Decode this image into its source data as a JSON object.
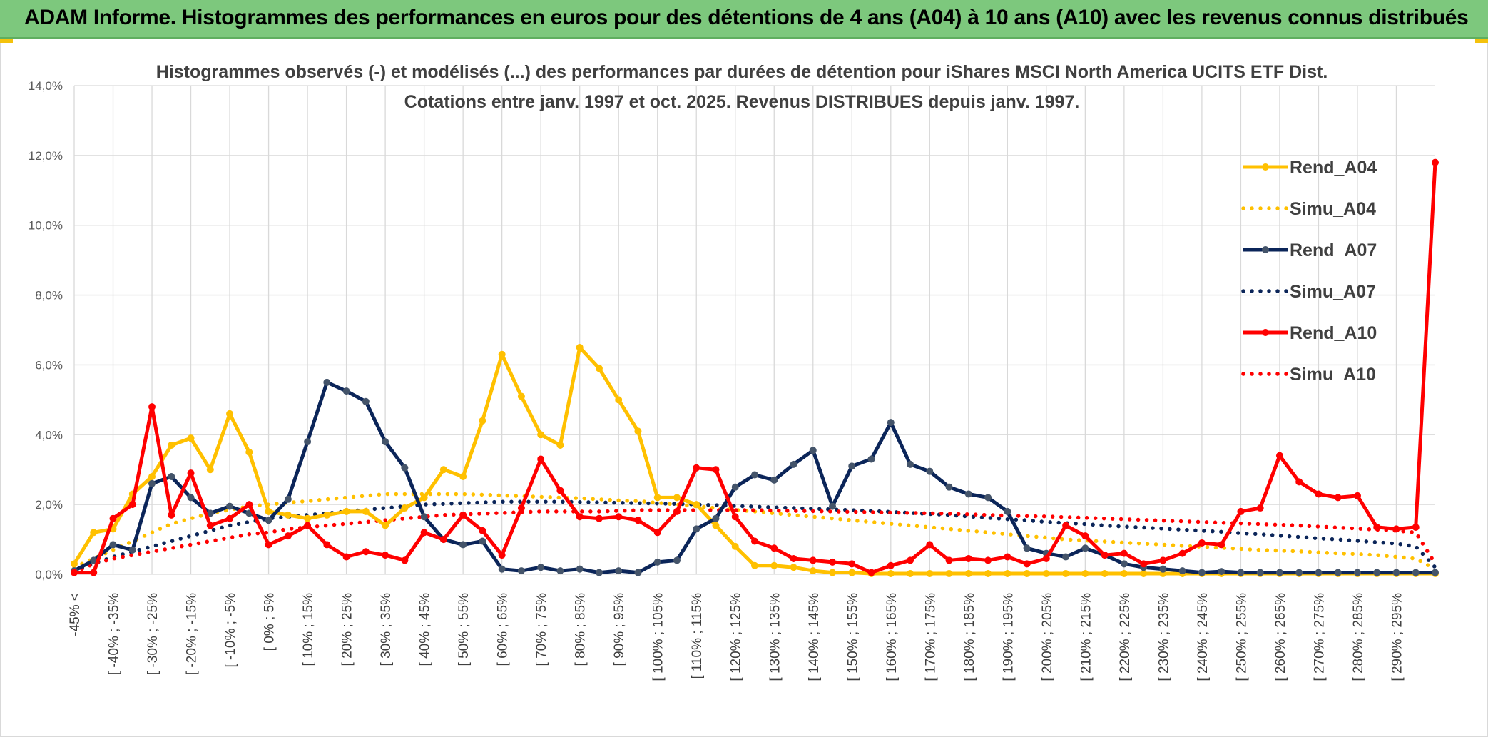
{
  "banner": {
    "title": "ADAM Informe. Histogrammes des performances en euros pour des détentions de 4 ans (A04) à 10 ans (A10) avec les revenus connus distribués"
  },
  "colors": {
    "banner_bg": "#7dc87d",
    "A04": "#ffc000",
    "A07": "#0b2559",
    "A10": "#ff0000",
    "marker_A07": "#44546a",
    "grid": "#d9d9d9"
  },
  "chart_data": {
    "type": "line",
    "title_lines": [
      "Histogrammes observés (-) et modélisés (...) des performances par durées de détention pour iShares MSCI North America UCITS ETF Dist.",
      "Cotations entre janv. 1997 et oct. 2025. Revenus DISTRIBUES depuis janv. 1997."
    ],
    "ylim": [
      0,
      14
    ],
    "yticks": [
      0,
      2,
      4,
      6,
      8,
      10,
      12,
      14
    ],
    "ytick_labels": [
      "0,0%",
      "2,0%",
      "4,0%",
      "6,0%",
      "8,0%",
      "10,0%",
      "12,0%",
      "14,0%"
    ],
    "x_tick_labels": [
      "-45% <",
      "[ -40% ; -35%",
      "[ -30% ; -25%",
      "[ -20% ; -15%",
      "[ -10% ; -5%",
      "[ 0% ; 5%",
      "[ 10% ; 15%",
      "[ 20% ; 25%",
      "[ 30% ; 35%",
      "[ 40% ; 45%",
      "[ 50% ; 55%",
      "[ 60% ; 65%",
      "[ 70% ; 75%",
      "[ 80% ; 85%",
      "[ 90% ; 95%",
      "[ 100% ; 105%",
      "[ 110% ; 115%",
      "[ 120% ; 125%",
      "[ 130% ; 135%",
      "[ 140% ; 145%",
      "[ 150% ; 155%",
      "[ 160% ; 165%",
      "[ 170% ; 175%",
      "[ 180% ; 185%",
      "[ 190% ; 195%",
      "[ 200% ; 205%",
      "[ 210% ; 215%",
      "[ 220% ; 225%",
      "[ 230% ; 235%",
      "[ 240% ; 245%",
      "[ 250% ; 255%",
      "[ 260% ; 265%",
      "[ 270% ; 275%",
      "[ 280% ; 285%",
      "[ 290% ; 295%"
    ],
    "series": [
      {
        "name": "Rend_A04",
        "style": "solid",
        "color_key": "A04",
        "values": [
          0.3,
          1.2,
          1.3,
          2.3,
          2.8,
          3.7,
          3.9,
          3.0,
          4.6,
          3.5,
          1.8,
          1.7,
          1.6,
          1.7,
          1.8,
          1.8,
          1.4,
          1.9,
          2.2,
          3.0,
          2.8,
          4.4,
          6.3,
          5.1,
          4.0,
          3.7,
          6.5,
          5.9,
          5.0,
          4.1,
          2.2,
          2.2,
          2.0,
          1.4,
          0.8,
          0.25,
          0.25,
          0.2,
          0.1,
          0.05,
          0.05,
          0.02,
          0.02,
          0.02,
          0.02,
          0.02,
          0.02,
          0.02,
          0.02,
          0.02,
          0.02,
          0.02,
          0.02,
          0.02,
          0.02,
          0.02,
          0.02,
          0.02,
          0.02,
          0.02,
          0.02,
          0.02,
          0.02,
          0.02,
          0.02,
          0.02,
          0.02,
          0.02,
          0.02,
          0.02,
          0.02
        ]
      },
      {
        "name": "Simu_A04",
        "style": "dotted",
        "color_key": "A04",
        "values": [
          0.2,
          0.45,
          0.7,
          0.95,
          1.2,
          1.45,
          1.6,
          1.75,
          1.85,
          1.95,
          2.0,
          2.05,
          2.1,
          2.15,
          2.2,
          2.25,
          2.3,
          2.3,
          2.3,
          2.3,
          2.3,
          2.28,
          2.26,
          2.24,
          2.22,
          2.2,
          2.18,
          2.15,
          2.12,
          2.1,
          2.05,
          2.0,
          1.95,
          1.9,
          1.85,
          1.8,
          1.75,
          1.7,
          1.65,
          1.6,
          1.55,
          1.5,
          1.45,
          1.4,
          1.35,
          1.3,
          1.25,
          1.2,
          1.15,
          1.1,
          1.05,
          1.0,
          0.97,
          0.94,
          0.91,
          0.88,
          0.85,
          0.82,
          0.79,
          0.76,
          0.73,
          0.7,
          0.68,
          0.66,
          0.63,
          0.6,
          0.58,
          0.55,
          0.5,
          0.45,
          0.15
        ]
      },
      {
        "name": "Rend_A07",
        "style": "solid",
        "color_key": "A07",
        "values": [
          0.1,
          0.4,
          0.85,
          0.7,
          2.6,
          2.8,
          2.2,
          1.75,
          1.95,
          1.75,
          1.55,
          2.15,
          3.8,
          5.5,
          5.25,
          4.95,
          3.8,
          3.05,
          1.65,
          1.0,
          0.85,
          0.95,
          0.15,
          0.1,
          0.2,
          0.1,
          0.15,
          0.05,
          0.1,
          0.05,
          0.35,
          0.4,
          1.3,
          1.6,
          2.5,
          2.85,
          2.7,
          3.15,
          3.55,
          1.95,
          3.1,
          3.3,
          4.35,
          3.15,
          2.95,
          2.5,
          2.3,
          2.2,
          1.8,
          0.75,
          0.6,
          0.5,
          0.75,
          0.55,
          0.3,
          0.2,
          0.15,
          0.1,
          0.05,
          0.08,
          0.05,
          0.05,
          0.05,
          0.05,
          0.05,
          0.05,
          0.05,
          0.05,
          0.05,
          0.05,
          0.05
        ]
      },
      {
        "name": "Simu_A07",
        "style": "dotted",
        "color_key": "A07",
        "values": [
          0.1,
          0.3,
          0.5,
          0.65,
          0.8,
          0.95,
          1.1,
          1.25,
          1.4,
          1.5,
          1.6,
          1.65,
          1.7,
          1.75,
          1.8,
          1.85,
          1.9,
          1.95,
          2.0,
          2.02,
          2.04,
          2.06,
          2.08,
          2.08,
          2.08,
          2.08,
          2.07,
          2.06,
          2.05,
          2.04,
          2.03,
          2.02,
          2.0,
          1.98,
          1.96,
          1.94,
          1.92,
          1.9,
          1.88,
          1.86,
          1.84,
          1.82,
          1.79,
          1.76,
          1.73,
          1.7,
          1.66,
          1.62,
          1.58,
          1.55,
          1.5,
          1.47,
          1.44,
          1.4,
          1.37,
          1.34,
          1.31,
          1.28,
          1.25,
          1.22,
          1.18,
          1.15,
          1.11,
          1.07,
          1.03,
          1.0,
          0.96,
          0.92,
          0.88,
          0.8,
          0.2
        ]
      },
      {
        "name": "Rend_A10",
        "style": "solid",
        "color_key": "A10",
        "values": [
          0.05,
          0.05,
          1.6,
          2.0,
          4.8,
          1.7,
          2.9,
          1.4,
          1.6,
          2.0,
          0.85,
          1.1,
          1.4,
          0.85,
          0.5,
          0.65,
          0.55,
          0.4,
          1.2,
          1.0,
          1.7,
          1.25,
          0.55,
          1.9,
          3.3,
          2.4,
          1.65,
          1.6,
          1.65,
          1.55,
          1.2,
          1.8,
          3.05,
          3.0,
          1.65,
          0.95,
          0.75,
          0.45,
          0.4,
          0.35,
          0.3,
          0.05,
          0.25,
          0.4,
          0.85,
          0.4,
          0.45,
          0.4,
          0.5,
          0.3,
          0.45,
          1.4,
          1.1,
          0.55,
          0.6,
          0.3,
          0.4,
          0.6,
          0.9,
          0.85,
          1.8,
          1.9,
          3.4,
          2.65,
          2.3,
          2.2,
          2.25,
          1.35,
          1.3,
          1.35,
          11.8
        ]
      },
      {
        "name": "Simu_A10",
        "style": "dotted",
        "color_key": "A10",
        "values": [
          0.05,
          0.3,
          0.45,
          0.55,
          0.65,
          0.75,
          0.85,
          0.95,
          1.05,
          1.15,
          1.2,
          1.3,
          1.35,
          1.4,
          1.45,
          1.5,
          1.55,
          1.6,
          1.65,
          1.7,
          1.72,
          1.74,
          1.76,
          1.78,
          1.8,
          1.8,
          1.8,
          1.8,
          1.82,
          1.84,
          1.84,
          1.84,
          1.84,
          1.84,
          1.84,
          1.84,
          1.83,
          1.82,
          1.81,
          1.8,
          1.79,
          1.78,
          1.77,
          1.76,
          1.75,
          1.74,
          1.72,
          1.7,
          1.68,
          1.67,
          1.66,
          1.64,
          1.62,
          1.6,
          1.58,
          1.56,
          1.54,
          1.52,
          1.5,
          1.48,
          1.46,
          1.44,
          1.42,
          1.4,
          1.37,
          1.34,
          1.31,
          1.28,
          1.25,
          1.2,
          0.3
        ]
      }
    ],
    "legend_position": "right"
  }
}
